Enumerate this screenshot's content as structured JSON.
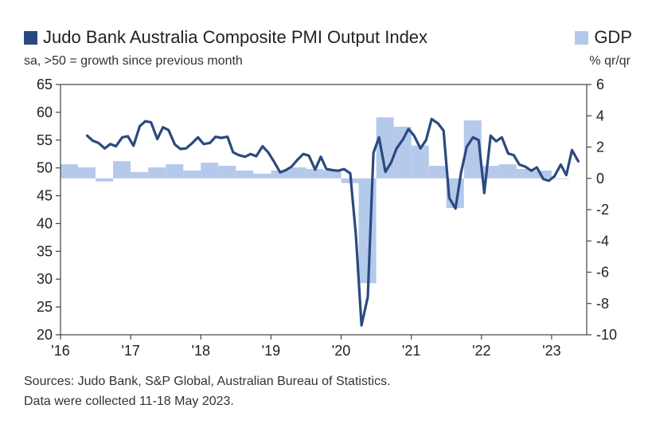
{
  "chart_data": {
    "type": "bar+line",
    "legend": [
      {
        "label": "Judo Bank Australia Composite PMI Output Index",
        "color": "#2a4a7f",
        "axis": "left"
      },
      {
        "label": "GDP",
        "color": "#b5c9eb",
        "axis": "right"
      }
    ],
    "subtitle_left": "sa, >50 = growth since previous month",
    "subtitle_right": "% qr/qr",
    "left_axis": {
      "range": [
        20,
        65
      ],
      "ticks": [
        "65",
        "60",
        "55",
        "50",
        "45",
        "40",
        "35",
        "30",
        "25",
        "20"
      ]
    },
    "right_axis": {
      "range": [
        -10,
        6
      ],
      "ticks": [
        "6",
        "4",
        "2",
        "0",
        "-2",
        "-4",
        "-6",
        "-8",
        "-10"
      ]
    },
    "x_axis": {
      "range": [
        2016.0,
        2023.5
      ],
      "ticks": [
        "'16",
        "'17",
        "'18",
        "'19",
        "'20",
        "'21",
        "'22",
        "'23"
      ],
      "tick_years": [
        2016,
        2017,
        2018,
        2019,
        2020,
        2021,
        2022,
        2023
      ]
    },
    "gdp_series": {
      "name": "GDP",
      "x": [
        2016.0,
        2016.25,
        2016.5,
        2016.75,
        2017.0,
        2017.25,
        2017.5,
        2017.75,
        2018.0,
        2018.25,
        2018.5,
        2018.75,
        2019.0,
        2019.25,
        2019.5,
        2019.75,
        2020.0,
        2020.25,
        2020.5,
        2020.75,
        2021.0,
        2021.25,
        2021.5,
        2021.75,
        2022.0,
        2022.25,
        2022.5,
        2022.75,
        2023.0
      ],
      "values": [
        0.9,
        0.7,
        -0.2,
        1.1,
        0.4,
        0.7,
        0.9,
        0.5,
        1.0,
        0.8,
        0.5,
        0.3,
        0.5,
        0.7,
        0.6,
        0.5,
        -0.3,
        -6.7,
        3.9,
        3.3,
        2.1,
        0.8,
        -1.9,
        3.7,
        0.8,
        0.9,
        0.6,
        0.5,
        0.0
      ]
    },
    "pmi_series": {
      "name": "Judo Bank Australia Composite PMI Output Index",
      "x": [
        2016.38,
        2016.46,
        2016.54,
        2016.63,
        2016.71,
        2016.79,
        2016.88,
        2016.96,
        2017.04,
        2017.13,
        2017.21,
        2017.29,
        2017.38,
        2017.46,
        2017.54,
        2017.63,
        2017.71,
        2017.79,
        2017.88,
        2017.96,
        2018.04,
        2018.13,
        2018.21,
        2018.29,
        2018.38,
        2018.46,
        2018.54,
        2018.63,
        2018.71,
        2018.79,
        2018.88,
        2018.96,
        2019.04,
        2019.13,
        2019.21,
        2019.29,
        2019.38,
        2019.46,
        2019.54,
        2019.63,
        2019.71,
        2019.79,
        2019.88,
        2019.96,
        2020.04,
        2020.13,
        2020.21,
        2020.29,
        2020.38,
        2020.46,
        2020.54,
        2020.63,
        2020.71,
        2020.79,
        2020.88,
        2020.96,
        2021.04,
        2021.13,
        2021.21,
        2021.29,
        2021.38,
        2021.46,
        2021.54,
        2021.63,
        2021.71,
        2021.79,
        2021.88,
        2021.96,
        2022.04,
        2022.13,
        2022.21,
        2022.29,
        2022.38,
        2022.46,
        2022.54,
        2022.63,
        2022.71,
        2022.79,
        2022.88,
        2022.96,
        2023.04,
        2023.13,
        2023.21,
        2023.29,
        2023.38
      ],
      "values": [
        55.8,
        54.9,
        54.5,
        53.5,
        54.3,
        53.9,
        55.5,
        55.7,
        54.0,
        57.5,
        58.4,
        58.2,
        55.2,
        57.3,
        56.8,
        54.2,
        53.4,
        53.5,
        54.5,
        55.5,
        54.3,
        54.5,
        55.6,
        55.4,
        55.6,
        52.8,
        52.3,
        52.0,
        52.5,
        52.1,
        53.9,
        52.8,
        51.2,
        49.2,
        49.6,
        50.2,
        51.5,
        52.5,
        52.2,
        49.7,
        52.0,
        49.8,
        49.6,
        49.5,
        49.8,
        49.0,
        38.0,
        21.7,
        26.8,
        52.7,
        55.5,
        49.3,
        50.9,
        53.5,
        55.1,
        57.0,
        55.8,
        53.5,
        55.0,
        58.8,
        58.0,
        56.7,
        44.6,
        42.7,
        49.2,
        53.8,
        55.5,
        55.0,
        45.5,
        55.8,
        54.8,
        55.5,
        52.6,
        52.3,
        50.6,
        50.2,
        49.5,
        50.1,
        48.0,
        47.7,
        48.5,
        50.6,
        48.7,
        53.2,
        51.2
      ]
    },
    "grid": false,
    "legend_position": "top"
  },
  "footer": {
    "sources": "Sources: Judo Bank, S&P Global, Australian Bureau of Statistics.",
    "collected": "Data were collected 11-18 May 2023."
  }
}
